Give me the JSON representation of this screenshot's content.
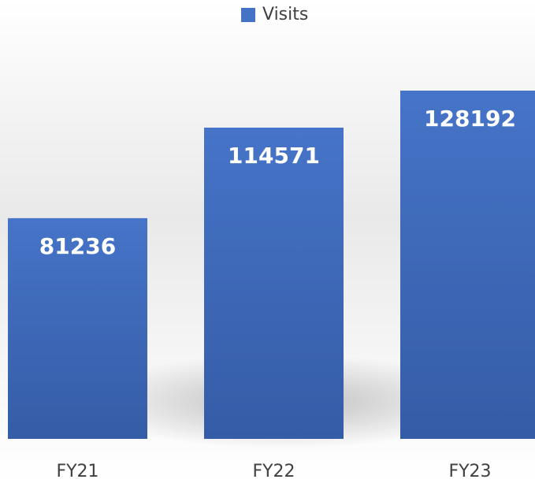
{
  "chart_data": {
    "type": "bar",
    "categories": [
      "FY21",
      "FY22",
      "FY23"
    ],
    "series": [
      {
        "name": "Visits",
        "color": "#4472c4",
        "values": [
          81236,
          114571,
          128192
        ]
      }
    ],
    "legend": "top"
  }
}
